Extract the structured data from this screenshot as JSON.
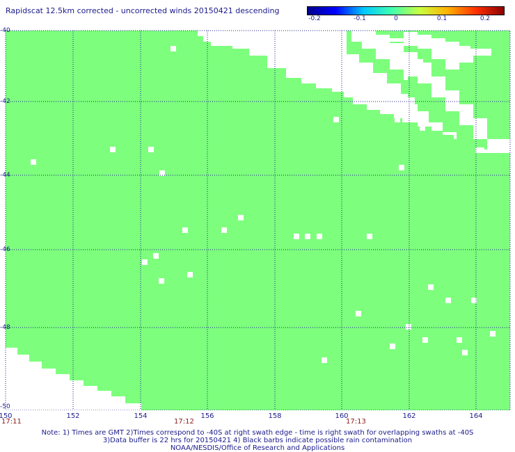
{
  "title": "Rapidscat 12.5km corrected - uncorrected winds 20150421 descending",
  "colorbar": {
    "ticks": [
      "-0.2",
      "-0.1",
      "0",
      "0.1",
      "0.2"
    ],
    "gradient": [
      "#00008b",
      "#0000ff",
      "#00c8ff",
      "#40ffb0",
      "#c8ff40",
      "#ffb000",
      "#ff3000",
      "#8b0000"
    ]
  },
  "map": {
    "fill_color": "#7dff7d",
    "grid_color": "#1a1a8c",
    "lon_ticks": [
      "150",
      "152",
      "154",
      "156",
      "158",
      "160",
      "162",
      "164"
    ],
    "lat_ticks": [
      "-40",
      "-42",
      "-44",
      "-46",
      "-48",
      "-50"
    ]
  },
  "times": [
    "17:11",
    "17:12",
    "17:13"
  ],
  "notes": [
    "Note: 1) Times are GMT 2)Times correspond to -40S at right swath edge - time is right swath for overlapping swaths at -40S",
    "3)Data buffer is 22 hrs for 20150421 4) Black barbs indicate possible rain contamination",
    "NOAA/NESDIS/Office of Research and Applications"
  ]
}
